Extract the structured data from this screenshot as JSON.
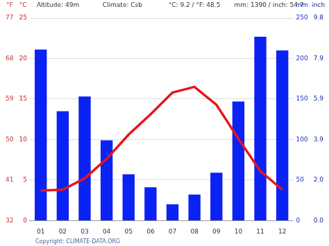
{
  "chart_data": {
    "type": "bar",
    "annotations": [
      "Altitude: 49m",
      "Climate: Csb",
      "°C: 9.2 / °F: 48.5",
      "mm: 1390 / inch: 54.7"
    ],
    "source": "Copyright: CLIMATE-DATA.ORG",
    "categories": [
      "01",
      "02",
      "03",
      "04",
      "05",
      "06",
      "07",
      "08",
      "09",
      "10",
      "11",
      "12"
    ],
    "series": [
      {
        "type": "bar",
        "axis": "y2",
        "color": "#0b22f4",
        "values": [
          211,
          135,
          153,
          99,
          57,
          41,
          20,
          32,
          59,
          147,
          227,
          210
        ]
      },
      {
        "type": "line",
        "axis": "y",
        "color": "#e8141b",
        "values": [
          3.7,
          3.8,
          5.2,
          7.6,
          10.6,
          13.1,
          15.8,
          16.5,
          14.3,
          10.1,
          6.1,
          3.8
        ]
      }
    ],
    "ylabel": "°C",
    "ylim": [
      0,
      25
    ],
    "yticks": [
      0,
      5,
      10,
      15,
      20,
      25
    ],
    "y2label": "mm",
    "y2lim": [
      0,
      250
    ],
    "y2ticks": [
      0,
      50,
      100,
      150,
      200,
      250
    ],
    "y3label": "°F",
    "y3lim": [
      32,
      77
    ],
    "y3ticks": [
      32,
      41,
      50,
      59,
      68,
      77
    ],
    "y4label": "inch",
    "y4lim": [
      0,
      9.84
    ],
    "y4ticks": [
      {
        "value": 0,
        "label": "0.0"
      },
      {
        "value": 1.97,
        "label": "2.0"
      },
      {
        "value": 3.94,
        "label": "3.9"
      },
      {
        "value": 5.91,
        "label": "5.9"
      },
      {
        "value": 7.87,
        "label": "7.9"
      },
      {
        "value": 9.84,
        "label": "9.8"
      }
    ],
    "grid": true
  }
}
